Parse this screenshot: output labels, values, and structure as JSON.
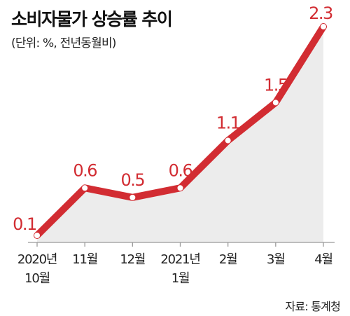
{
  "title": "소비자물가 상승률 추이",
  "subtitle": "(단위: %, 전년동월비)",
  "source": "자료: 통계청",
  "colors": {
    "line": "#d22c32",
    "area": "#ececec",
    "label": "#d22c32",
    "axis": "#9a9a9a"
  },
  "chart_data": {
    "type": "area",
    "title": "소비자물가 상승률 추이",
    "unit": "%",
    "categories": [
      [
        "2020년",
        "10월"
      ],
      [
        "11월"
      ],
      [
        "12월"
      ],
      [
        "2021년",
        "1월"
      ],
      [
        "2월"
      ],
      [
        "3월"
      ],
      [
        "4월"
      ]
    ],
    "values": [
      0.1,
      0.6,
      0.5,
      0.6,
      1.1,
      1.5,
      2.3
    ],
    "value_labels": [
      "0.1",
      "0.6",
      "0.5",
      "0.6",
      "1.1",
      "1.5",
      "2.3"
    ],
    "ylim": [
      0,
      2.3
    ],
    "grid": false,
    "legend": "none"
  }
}
